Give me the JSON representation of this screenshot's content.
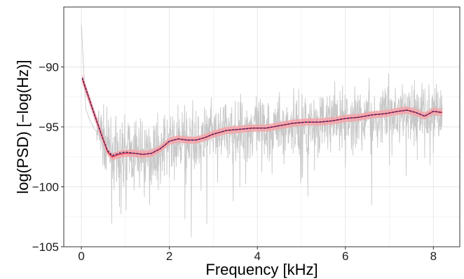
{
  "chart_data": {
    "type": "line",
    "title": "",
    "xlabel": "Frequency [kHz]",
    "ylabel": "log(PSD) [−log(Hz)]",
    "xlim": [
      -0.4,
      8.6
    ],
    "ylim": [
      -105,
      -85
    ],
    "x_ticks": [
      0,
      2,
      4,
      6,
      8
    ],
    "x_tick_labels": [
      "0",
      "2",
      "4",
      "6",
      "8"
    ],
    "y_ticks": [
      -105,
      -100,
      -95,
      -90
    ],
    "y_tick_labels": [
      "−105",
      "−100",
      "−95",
      "−90"
    ],
    "grid": true,
    "legend": "none",
    "series": [
      {
        "role": "raw-periodogram",
        "color": "#c8c8c8",
        "style": "solid",
        "trend_x": [
          0,
          0.1,
          0.2,
          0.3,
          0.4,
          0.55,
          0.7,
          0.9,
          1.2,
          1.5,
          1.8,
          2.0,
          2.4,
          2.8,
          3.2,
          3.6,
          4.0,
          4.5,
          5.0,
          5.5,
          6.0,
          6.5,
          7.0,
          7.5,
          8.0,
          8.2
        ],
        "trend_y": [
          -86.5,
          -93.5,
          -94.5,
          -95.2,
          -95.6,
          -96.3,
          -97.3,
          -97.0,
          -97.1,
          -97.3,
          -96.6,
          -96.1,
          -96.1,
          -95.8,
          -95.4,
          -95.2,
          -95.1,
          -94.9,
          -94.7,
          -94.6,
          -94.4,
          -94.1,
          -93.9,
          -93.8,
          -93.7,
          -93.6
        ],
        "spread": 1.6,
        "dips": [
          {
            "x": 0.8,
            "y": -99.6
          },
          {
            "x": 0.9,
            "y": -102.3
          },
          {
            "x": 1.2,
            "y": -100.3
          },
          {
            "x": 1.45,
            "y": -99.6
          },
          {
            "x": 1.55,
            "y": -101.5
          },
          {
            "x": 1.75,
            "y": -100.3
          },
          {
            "x": 2.0,
            "y": -99.2
          },
          {
            "x": 2.35,
            "y": -102.7
          },
          {
            "x": 2.5,
            "y": -104.2
          },
          {
            "x": 2.85,
            "y": -103.1
          },
          {
            "x": 3.1,
            "y": -99.6
          },
          {
            "x": 3.45,
            "y": -101.2
          },
          {
            "x": 3.6,
            "y": -100.0
          },
          {
            "x": 4.1,
            "y": -98.8
          },
          {
            "x": 5.0,
            "y": -99.3
          },
          {
            "x": 5.15,
            "y": -100.8
          },
          {
            "x": 5.3,
            "y": -98.6
          },
          {
            "x": 6.0,
            "y": -98.4
          },
          {
            "x": 6.6,
            "y": -101.5
          },
          {
            "x": 7.0,
            "y": -98.2
          },
          {
            "x": 7.8,
            "y": -97.6
          },
          {
            "x": 8.0,
            "y": -97.2
          }
        ]
      },
      {
        "role": "estimate-band",
        "color": "#f4a3a8",
        "style": "band",
        "x": [
          0.02,
          0.3,
          0.5,
          0.6,
          0.7,
          0.85,
          1.0,
          1.2,
          1.4,
          1.6,
          1.8,
          2.0,
          2.2,
          2.4,
          2.6,
          2.8,
          3.0,
          3.3,
          3.6,
          3.9,
          4.2,
          4.5,
          4.8,
          5.1,
          5.4,
          5.7,
          6.0,
          6.3,
          6.6,
          6.9,
          7.2,
          7.4,
          7.6,
          7.8,
          8.0,
          8.2
        ],
        "lower": [
          -91.4,
          -94.4,
          -96.5,
          -97.4,
          -97.8,
          -97.6,
          -97.5,
          -97.5,
          -97.6,
          -97.5,
          -97.1,
          -96.5,
          -96.3,
          -96.4,
          -96.4,
          -96.2,
          -95.9,
          -95.6,
          -95.5,
          -95.4,
          -95.4,
          -95.2,
          -95.0,
          -94.9,
          -94.9,
          -94.8,
          -94.6,
          -94.5,
          -94.3,
          -94.2,
          -94.0,
          -93.9,
          -94.1,
          -94.4,
          -94.0,
          -94.1
        ],
        "upper": [
          -90.6,
          -93.6,
          -95.7,
          -96.8,
          -97.2,
          -97.0,
          -96.9,
          -96.9,
          -97.0,
          -96.9,
          -96.5,
          -95.9,
          -95.7,
          -95.8,
          -95.8,
          -95.6,
          -95.3,
          -95.0,
          -94.9,
          -94.8,
          -94.8,
          -94.6,
          -94.4,
          -94.3,
          -94.3,
          -94.2,
          -94.0,
          -93.9,
          -93.7,
          -93.6,
          -93.4,
          -93.3,
          -93.5,
          -93.8,
          -93.4,
          -93.5
        ]
      },
      {
        "role": "estimate",
        "color": "#d62839",
        "style": "solid",
        "x": [
          0.02,
          0.3,
          0.5,
          0.6,
          0.7,
          0.85,
          1.0,
          1.2,
          1.4,
          1.6,
          1.8,
          2.0,
          2.2,
          2.4,
          2.6,
          2.8,
          3.0,
          3.3,
          3.6,
          3.9,
          4.2,
          4.5,
          4.8,
          5.1,
          5.4,
          5.7,
          6.0,
          6.3,
          6.6,
          6.9,
          7.2,
          7.4,
          7.6,
          7.8,
          8.0,
          8.2
        ],
        "y": [
          -91.0,
          -94.0,
          -96.1,
          -97.1,
          -97.5,
          -97.3,
          -97.2,
          -97.2,
          -97.3,
          -97.2,
          -96.8,
          -96.2,
          -96.0,
          -96.1,
          -96.1,
          -95.9,
          -95.6,
          -95.3,
          -95.2,
          -95.1,
          -95.1,
          -94.9,
          -94.7,
          -94.6,
          -94.6,
          -94.5,
          -94.3,
          -94.2,
          -94.0,
          -93.9,
          -93.7,
          -93.6,
          -93.8,
          -94.1,
          -93.7,
          -93.8
        ]
      },
      {
        "role": "reference",
        "color": "#2b1a6e",
        "style": "dashed",
        "x": [
          0.02,
          0.3,
          0.5,
          0.6,
          0.7,
          0.85,
          1.0,
          1.2,
          1.4,
          1.6,
          1.8,
          2.0,
          2.2,
          2.4,
          2.6,
          2.8,
          3.0,
          3.3,
          3.6,
          3.9,
          4.2,
          4.5,
          4.8,
          5.1,
          5.4,
          5.7,
          6.0,
          6.3,
          6.6,
          6.9,
          7.2,
          7.4,
          7.6,
          7.8,
          8.0,
          8.2
        ],
        "y": [
          -90.9,
          -94.0,
          -96.1,
          -97.0,
          -97.4,
          -97.2,
          -97.1,
          -97.2,
          -97.3,
          -97.2,
          -96.8,
          -96.2,
          -96.0,
          -96.1,
          -96.1,
          -95.9,
          -95.6,
          -95.3,
          -95.2,
          -95.1,
          -95.1,
          -94.9,
          -94.7,
          -94.6,
          -94.6,
          -94.5,
          -94.3,
          -94.2,
          -94.0,
          -93.9,
          -93.7,
          -93.6,
          -93.8,
          -94.1,
          -93.7,
          -93.8
        ]
      }
    ],
    "colors": {
      "panel_border": "#333333",
      "grid_major": "#e6e6e6",
      "grid_minor": "#f3f3f3"
    }
  }
}
